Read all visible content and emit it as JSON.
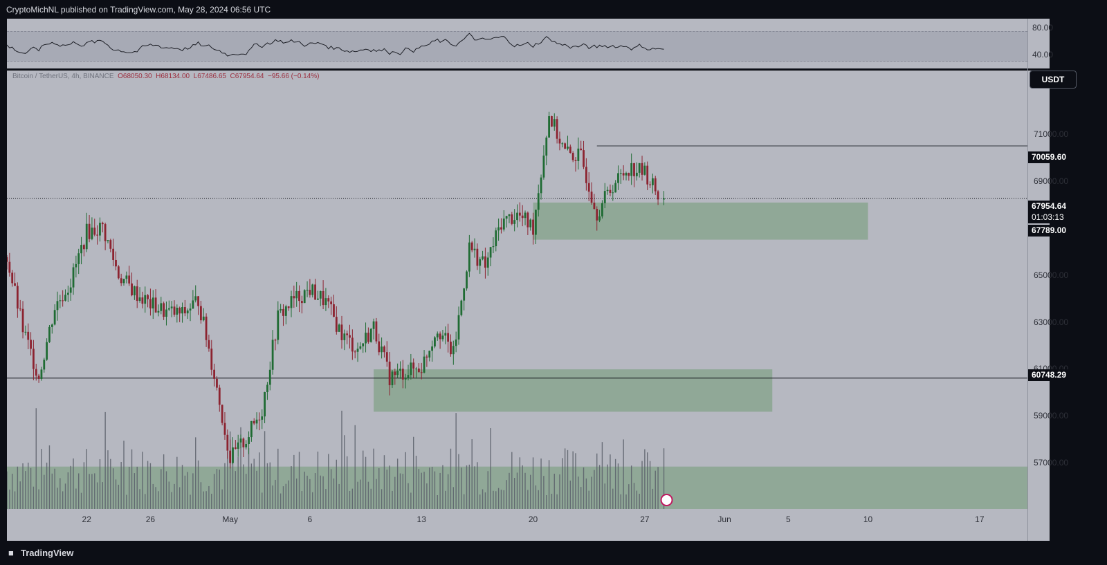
{
  "header": {
    "publisher_line": "CryptoMichNL published on TradingView.com, May 28, 2024 06:56 UTC"
  },
  "legend": {
    "symbol": "Bitcoin / TetherUS, 4h, BINANCE",
    "open": "O68050.30",
    "high": "H68134.00",
    "low": "L67486.65",
    "close": "C67954.64",
    "change": "−95.66 (−0.14%)"
  },
  "price_scale": {
    "currency_button": "USDT",
    "ticks": [
      "71000.00",
      "69000.00",
      "65000.00",
      "63000.00",
      "61000.00",
      "59000.00",
      "57000.00"
    ],
    "rsi_ticks": [
      "80.00",
      "40.00"
    ]
  },
  "price_tags": {
    "resistance": "70059.60",
    "current_price": "67954.64",
    "countdown": "01:03:13",
    "support_high": "67789.00",
    "support_low": "60748.29"
  },
  "footer": {
    "brand": "TradingView",
    "logo_icon": "tradingview-logo-icon"
  },
  "colors": {
    "background": "#b6b8c1",
    "bull_candle": "#1f6b33",
    "bear_candle": "#8c2330",
    "zone_fill": "#8aa58f",
    "frame": "#0c0e15"
  },
  "chart_data": {
    "type": "candlestick",
    "symbol": "Bitcoin / TetherUS",
    "interval": "4h",
    "exchange": "BINANCE",
    "x_ticks": [
      "22",
      "26",
      "May",
      "6",
      "13",
      "20",
      "27",
      "Jun",
      "5",
      "10",
      "17"
    ],
    "x_tick_dates": [
      "2024-04-22",
      "2024-04-26",
      "2024-05-01",
      "2024-05-06",
      "2024-05-13",
      "2024-05-20",
      "2024-05-27",
      "2024-06-01",
      "2024-06-05",
      "2024-06-10",
      "2024-06-17"
    ],
    "ylim": [
      55500,
      73000
    ],
    "y_ticks": [
      57000,
      59000,
      61000,
      63000,
      65000,
      69000,
      71000
    ],
    "price_path": [
      [
        "2024-04-17",
        65600
      ],
      [
        "2024-04-18",
        62700
      ],
      [
        "2024-04-19",
        60800
      ],
      [
        "2024-04-20",
        63600
      ],
      [
        "2024-04-21",
        64600
      ],
      [
        "2024-04-22",
        66600
      ],
      [
        "2024-04-23",
        66800
      ],
      [
        "2024-04-24",
        64900
      ],
      [
        "2024-04-25",
        64200
      ],
      [
        "2024-04-26",
        63700
      ],
      [
        "2024-04-27",
        63400
      ],
      [
        "2024-04-28",
        63300
      ],
      [
        "2024-04-29",
        63900
      ],
      [
        "2024-04-30",
        60900
      ],
      [
        "2024-05-01",
        57500
      ],
      [
        "2024-05-02",
        58300
      ],
      [
        "2024-05-03",
        59500
      ],
      [
        "2024-05-04",
        63200
      ],
      [
        "2024-05-05",
        63900
      ],
      [
        "2024-05-06",
        64300
      ],
      [
        "2024-05-07",
        63800
      ],
      [
        "2024-05-08",
        62500
      ],
      [
        "2024-05-09",
        61900
      ],
      [
        "2024-05-10",
        62800
      ],
      [
        "2024-05-11",
        60800
      ],
      [
        "2024-05-12",
        61000
      ],
      [
        "2024-05-13",
        61200
      ],
      [
        "2024-05-14",
        62800
      ],
      [
        "2024-05-15",
        61700
      ],
      [
        "2024-05-16",
        66000
      ],
      [
        "2024-05-17",
        65200
      ],
      [
        "2024-05-18",
        67000
      ],
      [
        "2024-05-19",
        67300
      ],
      [
        "2024-05-20",
        66800
      ],
      [
        "2024-05-21",
        71300
      ],
      [
        "2024-05-22",
        69800
      ],
      [
        "2024-05-23",
        69600
      ],
      [
        "2024-05-24",
        67400
      ],
      [
        "2024-05-25",
        68500
      ],
      [
        "2024-05-26",
        69200
      ],
      [
        "2024-05-27",
        69000
      ],
      [
        "2024-05-28",
        67954.64
      ]
    ],
    "last": {
      "open": 68050.3,
      "high": 68134.0,
      "low": 67486.65,
      "close": 67954.64,
      "change": -95.66,
      "change_pct": -0.14
    },
    "horizontal_levels": [
      70059.6,
      67954.64,
      60748.29
    ],
    "zones": [
      {
        "top": 67789.0,
        "bottom": 66300,
        "from": "2024-05-20",
        "to": "2024-06-10"
      },
      {
        "top": 61100,
        "bottom": 59400,
        "from": "2024-05-10",
        "to": "2024-06-04"
      },
      {
        "top": 57200,
        "bottom": 55500,
        "from": "2024-04-17",
        "to": "2024-06-20"
      }
    ],
    "rsi": {
      "ylim": [
        20,
        100
      ],
      "bands": [
        70,
        30
      ],
      "ticks": [
        80,
        40
      ]
    }
  }
}
